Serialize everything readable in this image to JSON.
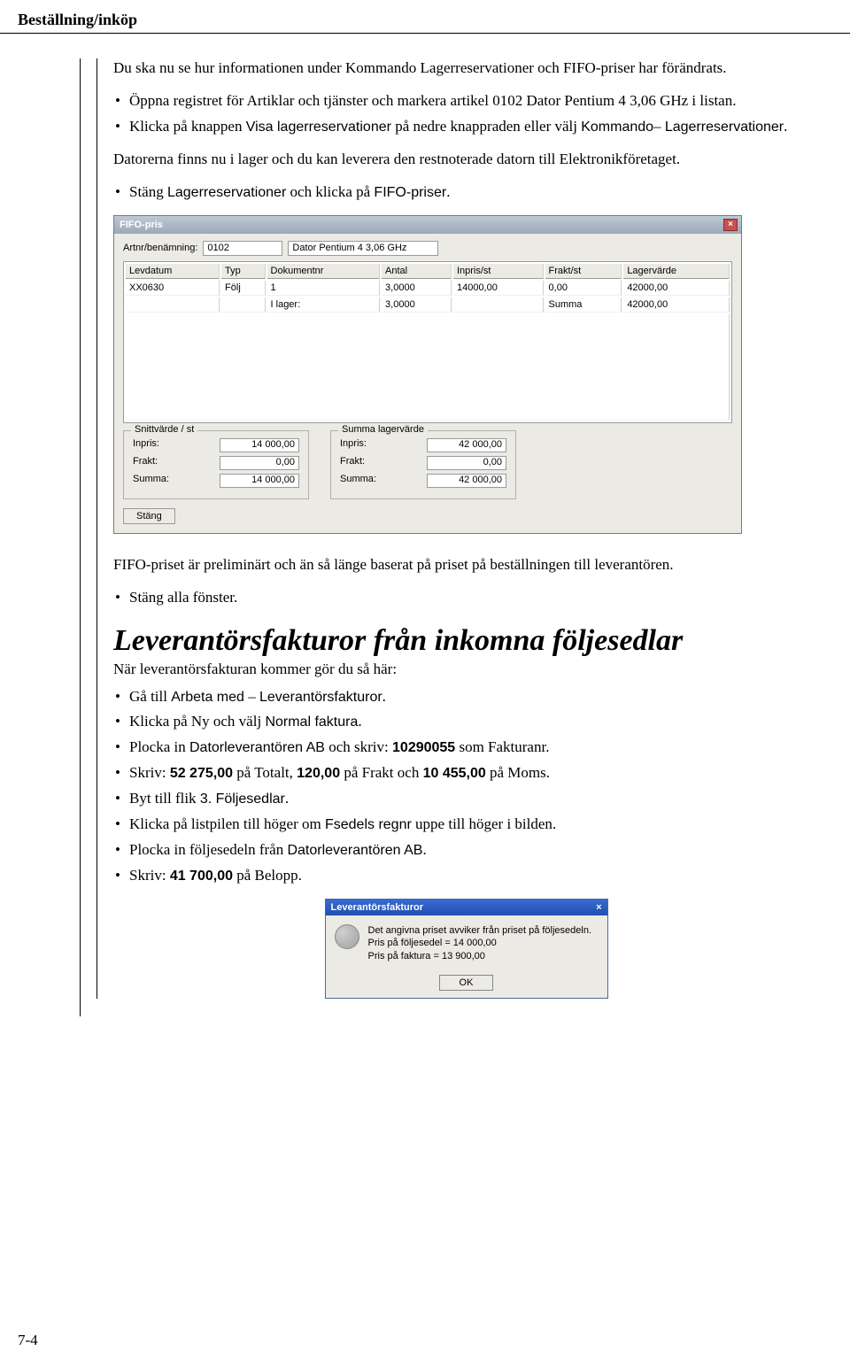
{
  "header": "Beställning/inköp",
  "intro": "Du ska nu se hur informationen under Kommando Lagerreservationer och FIFO-priser har förändrats.",
  "bullets1": [
    "Öppna registret för Artiklar och tjänster och markera artikel 0102 Dator Pentium 4 3,06 GHz i listan.",
    "Klicka på knappen <span class='sans'>Visa lagerreservationer</span> på nedre knappraden eller välj <span class='sans'>Kommando</span>– <span class='sans'>Lagerreservationer</span>."
  ],
  "para2": "Datorerna finns nu i lager och du kan leverera den restnoterade datorn till Elektronikföretaget.",
  "bullets2": [
    "Stäng <span class='sans'>Lagerreservationer</span> och klicka på <span class='sans'>FIFO-priser</span>."
  ],
  "fifo": {
    "title": "FIFO-pris",
    "artnr_label": "Artnr/benämning:",
    "artnr": "0102",
    "artname": "Dator Pentium 4 3,06 GHz",
    "cols": [
      "Levdatum",
      "Typ",
      "Dokumentnr",
      "Antal",
      "Inpris/st",
      "Frakt/st",
      "Lagervärde"
    ],
    "row": [
      "XX0630",
      "Följ",
      "1",
      "3,0000",
      "14000,00",
      "0,00",
      "42000,00"
    ],
    "sumrow_label": "I lager:",
    "sumrow_antal": "3,0000",
    "sumrow_label2": "Summa",
    "sumrow_val": "42000,00",
    "box1_title": "Snittvärde / st",
    "box2_title": "Summa lagervärde",
    "inpris_label": "Inpris:",
    "frakt_label": "Frakt:",
    "summa_label": "Summa:",
    "box1_inpris": "14 000,00",
    "box1_frakt": "0,00",
    "box1_summa": "14 000,00",
    "box2_inpris": "42 000,00",
    "box2_frakt": "0,00",
    "box2_summa": "42 000,00",
    "stang": "Stäng"
  },
  "para3": "FIFO-priset är preliminärt och än så länge baserat på priset på beställningen till leverantören.",
  "bullets3": [
    "Stäng alla fönster."
  ],
  "heading2": "Leverantörsfakturor från inkomna följesedlar",
  "subpara": "När leverantörsfakturan kommer gör du så här:",
  "bullets4": [
    "Gå till <span class='sans'>Arbeta med</span> – <span class='sans'>Leverantörsfakturor</span>.",
    "Klicka på Ny och välj <span class='sans'>Normal faktura</span>.",
    "Plocka in <span class='sans'>Datorleverantören AB</span> och skriv: <span class='sans bold'>10290055</span> som Fakturanr.",
    "Skriv: <span class='sans bold'>52 275,00</span> på Totalt, <span class='sans bold'>120,00</span> på Frakt och <span class='sans bold'>10 455,00</span> på Moms.",
    "Byt till flik <span class='sans'>3. Följesedlar</span>.",
    "Klicka på listpilen till höger om <span class='sans'>Fsedels regnr</span> uppe till höger i bilden.",
    "Plocka in följesedeln från <span class='sans'>Datorleverantören AB</span>.",
    "Skriv: <span class='sans bold'>41 700,00</span> på Belopp."
  ],
  "dialog": {
    "title": "Leverantörsfakturor",
    "line1": "Det angivna priset avviker från priset på följesedeln.",
    "line2": "Pris på följesedel = 14 000,00",
    "line3": "Pris på faktura = 13 900,00",
    "ok": "OK"
  },
  "pagenum": "7-4"
}
